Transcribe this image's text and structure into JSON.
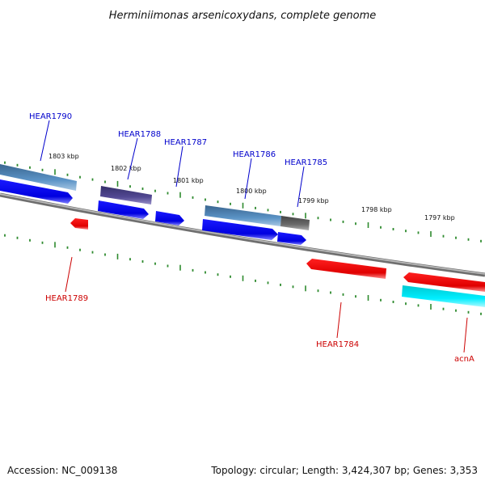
{
  "title": "Herminiimonas arsenicoxydans, complete genome",
  "footer": {
    "accession": "Accession: NC_009138",
    "summary": "Topology: circular; Length: 3,424,307 bp; Genes: 3,353"
  },
  "colors": {
    "background": "#ffffff",
    "backbone": "#8c8c8c",
    "tick": "#2e8b2e",
    "forward_label": "#0000cc",
    "reverse_label": "#cc0000",
    "gene_blue": "#1a1aff",
    "gene_steel": "#4a7fb0",
    "gene_purple": "#4b3f8a",
    "gene_gray": "#666666",
    "gene_red": "#ee0000",
    "gene_cyan": "#00e5ee"
  },
  "scale_labels": [
    {
      "text": "1803 kbp"
    },
    {
      "text": "1802 kbp"
    },
    {
      "text": "1801 kbp"
    },
    {
      "text": "1800 kbp"
    },
    {
      "text": "1799 kbp"
    },
    {
      "text": "1798 kbp"
    },
    {
      "text": "1797 kbp"
    }
  ],
  "genes": {
    "forward": [
      {
        "label": "HEAR1790"
      },
      {
        "label": "HEAR1788"
      },
      {
        "label": "HEAR1787"
      },
      {
        "label": "HEAR1786"
      },
      {
        "label": "HEAR1785"
      }
    ],
    "reverse": [
      {
        "label": "HEAR1789"
      },
      {
        "label": "HEAR1784"
      },
      {
        "label": "acnA"
      }
    ]
  }
}
